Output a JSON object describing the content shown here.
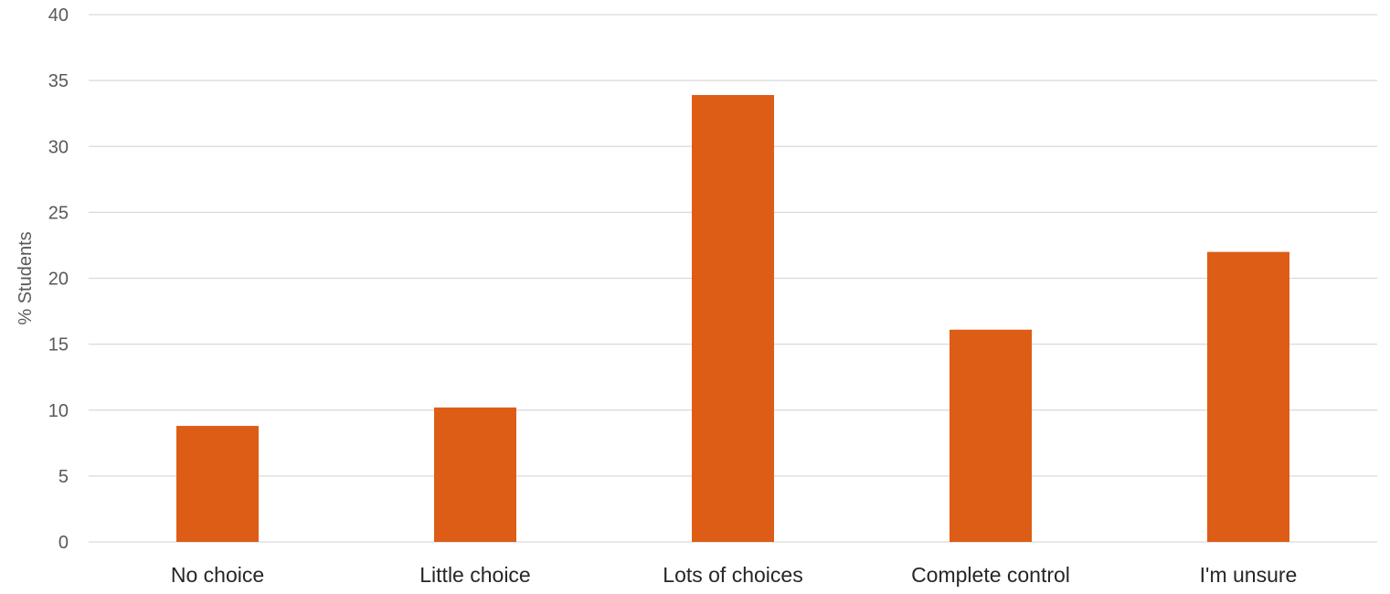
{
  "chart_data": {
    "type": "bar",
    "title": "",
    "xlabel": "",
    "ylabel": "% Students",
    "categories": [
      "No choice",
      "Little choice",
      "Lots of choices",
      "Complete control",
      "I'm unsure"
    ],
    "series": [
      {
        "values": [
          8.8,
          10.2,
          33.9,
          16.1,
          22.0
        ]
      }
    ],
    "ylim": [
      0,
      40
    ],
    "yticks": [
      0,
      5,
      10,
      15,
      20,
      25,
      30,
      35,
      40
    ],
    "grid": true,
    "legend": "none",
    "bar_color": "#de5d16"
  }
}
